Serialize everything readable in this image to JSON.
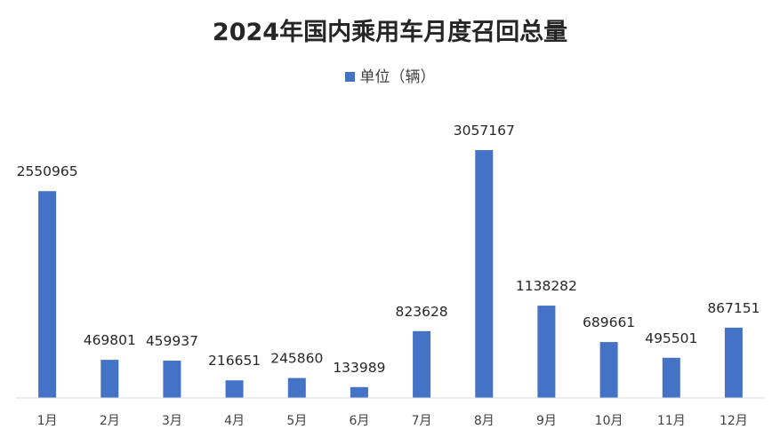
{
  "chart_data": {
    "type": "bar",
    "title": "2024年国内乘用车月度召回总量",
    "categories": [
      "1月",
      "2月",
      "3月",
      "4月",
      "5月",
      "6月",
      "7月",
      "8月",
      "9月",
      "10月",
      "11月",
      "12月"
    ],
    "series": [
      {
        "name": "单位（辆）",
        "values": [
          2550965,
          469801,
          459937,
          216651,
          245860,
          133989,
          823628,
          3057167,
          1138282,
          689661,
          495501,
          867151
        ],
        "color": "#4472c4"
      }
    ],
    "data_labels": [
      "2550965",
      "469801",
      "459937",
      "216651",
      "245860",
      "133989",
      "823628",
      "3057167",
      "1138282",
      "689661",
      "495501",
      "867151"
    ],
    "xlabel": "",
    "ylabel": "",
    "grid": false,
    "legend_position": "top"
  }
}
